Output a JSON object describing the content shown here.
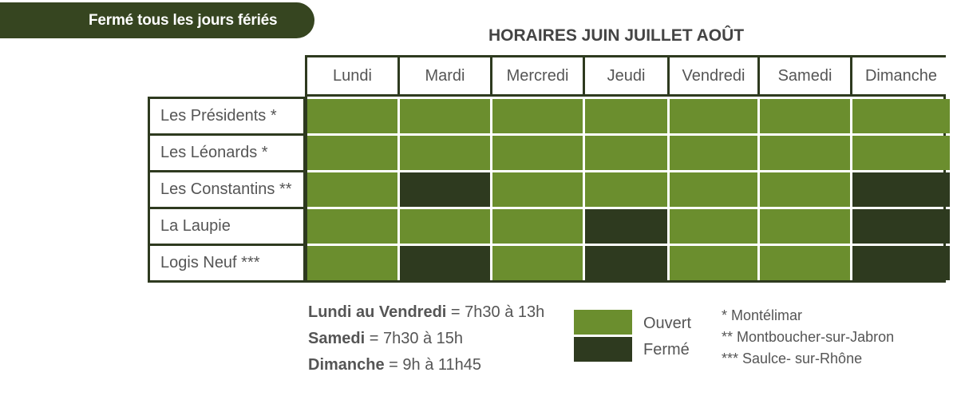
{
  "banner": "Fermé tous les jours fériés",
  "title": "HORAIRES JUIN JUILLET AOÛT",
  "days": [
    "Lundi",
    "Mardi",
    "Mercredi",
    "Jeudi",
    "Vendredi",
    "Samedi",
    "Dimanche"
  ],
  "rows": [
    {
      "label": "Les Présidents *",
      "status": [
        "open",
        "open",
        "open",
        "open",
        "open",
        "open",
        "open"
      ]
    },
    {
      "label": "Les Léonards *",
      "status": [
        "open",
        "open",
        "open",
        "open",
        "open",
        "open",
        "open"
      ]
    },
    {
      "label": "Les Constantins **",
      "status": [
        "open",
        "closed",
        "open",
        "open",
        "open",
        "open",
        "closed"
      ]
    },
    {
      "label": "La Laupie",
      "status": [
        "open",
        "open",
        "open",
        "closed",
        "open",
        "open",
        "closed"
      ]
    },
    {
      "label": "Logis Neuf ***",
      "status": [
        "open",
        "closed",
        "open",
        "closed",
        "open",
        "open",
        "closed"
      ]
    }
  ],
  "hours": [
    {
      "day": "Lundi au Vendredi",
      "time": " = 7h30 à 13h"
    },
    {
      "day": "Samedi",
      "time": " = 7h30 à 15h"
    },
    {
      "day": "Dimanche",
      "time": " = 9h à 11h45"
    }
  ],
  "legend": {
    "open_label": "Ouvert",
    "closed_label": "Fermé",
    "open_color": "#6b8e2e",
    "closed_color": "#2e3a1f"
  },
  "notes": [
    "* Montélimar",
    "** Montboucher-sur-Jabron",
    "*** Saulce- sur-Rhône"
  ]
}
